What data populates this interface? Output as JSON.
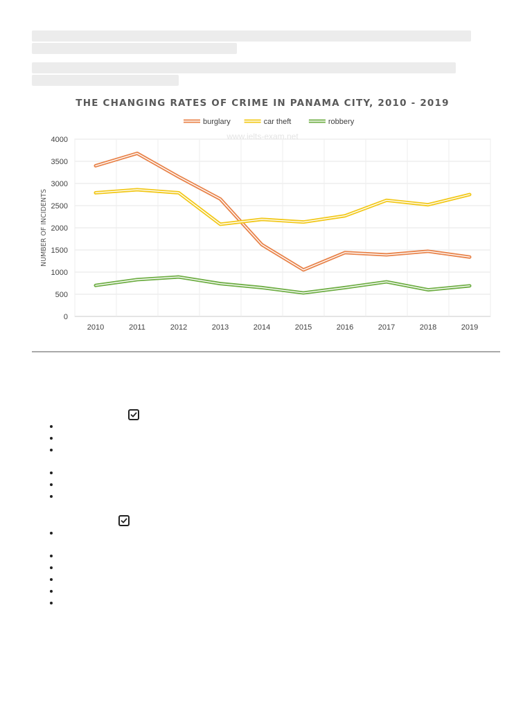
{
  "chart_data": {
    "type": "line",
    "title": "THE CHANGING RATES OF CRIME IN PANAMA CITY, 2010 - 2019",
    "watermark": "www.ielts-exam.net",
    "xlabel": "",
    "ylabel": "NUMBER OF INCIDENTS",
    "ylim": [
      0,
      4000
    ],
    "yticks": [
      0,
      500,
      1000,
      1500,
      2000,
      2500,
      3000,
      3500,
      4000
    ],
    "categories": [
      "2010",
      "2011",
      "2012",
      "2013",
      "2014",
      "2015",
      "2016",
      "2017",
      "2018",
      "2019"
    ],
    "legend_position": "top-center",
    "grid": true,
    "series": [
      {
        "name": "burglary",
        "color": "#e8834a",
        "values": [
          3400,
          3680,
          3150,
          2650,
          1620,
          1050,
          1440,
          1390,
          1470,
          1340
        ]
      },
      {
        "name": "car theft",
        "color": "#f2c81a",
        "values": [
          2790,
          2860,
          2790,
          2080,
          2190,
          2130,
          2270,
          2620,
          2520,
          2750
        ]
      },
      {
        "name": "robbery",
        "color": "#6fae45",
        "values": [
          700,
          830,
          890,
          740,
          650,
          530,
          650,
          780,
          600,
          690
        ]
      }
    ]
  },
  "checklist": {
    "icon": "checkbox-checked-icon"
  }
}
